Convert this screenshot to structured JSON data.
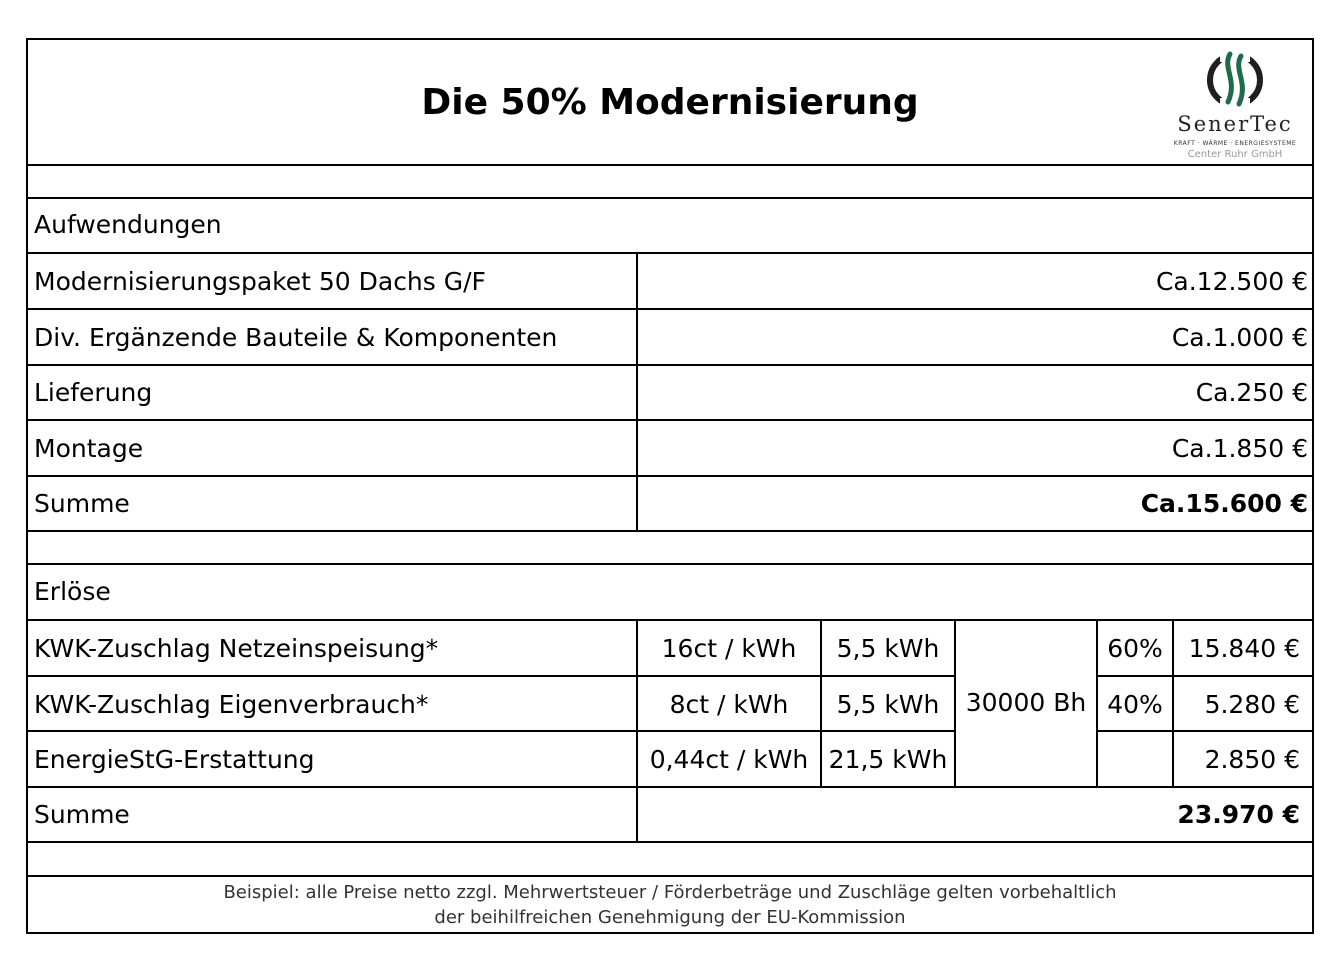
{
  "title": "Die 50% Modernisierung",
  "logo": {
    "name": "SenerTec",
    "tagline": "KRAFT · WÄRME · ENERGIESYSTEME",
    "company": "Center Ruhr GmbH",
    "color": "#1f6b4a"
  },
  "aufwendungen": {
    "heading": "Aufwendungen",
    "rows": [
      {
        "label": "Modernisierungspaket 50 Dachs G/F",
        "value": "Ca.12.500 €"
      },
      {
        "label": "Div. Ergänzende Bauteile & Komponenten",
        "value": "Ca.1.000 €"
      },
      {
        "label": "Lieferung",
        "value": "Ca.250 €"
      },
      {
        "label": "Montage",
        "value": "Ca.1.850 €"
      }
    ],
    "sum_label": "Summe",
    "sum_value": "Ca.15.600 €"
  },
  "erloese": {
    "heading": "Erlöse",
    "rows": [
      {
        "label": "KWK-Zuschlag Netzeinspeisung*",
        "rate": "16ct / kWh",
        "power": "5,5 kWh",
        "share": "60%",
        "value": "15.840 €"
      },
      {
        "label": "KWK-Zuschlag Eigenverbrauch*",
        "rate": "8ct / kWh",
        "power": "5,5 kWh",
        "share": "40%",
        "value": "5.280 €"
      },
      {
        "label": "EnergieStG-Erstattung",
        "rate": "0,44ct / kWh",
        "power": "21,5 kWh",
        "share": "",
        "value": "2.850 €"
      }
    ],
    "hours": "30000 Bh",
    "sum_label": "Summe",
    "sum_value": "23.970 €"
  },
  "footnote": {
    "line1": "Beispiel: alle Preise netto zzgl. Mehrwertsteuer / Förderbeträge und Zuschläge gelten vorbehaltlich",
    "line2": "der beihilfreichen Genehmigung der EU-Kommission"
  }
}
